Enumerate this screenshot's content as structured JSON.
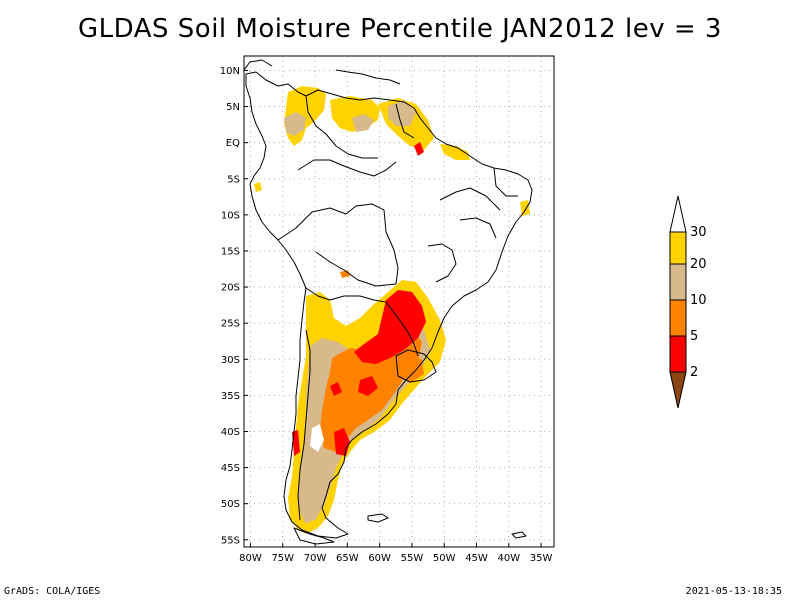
{
  "title": "GLDAS Soil Moisture Percentile JAN2012 lev = 3",
  "footer": {
    "left": "GrADS: COLA/IGES",
    "right": "2021-05-13-18:35"
  },
  "map": {
    "lat_labels": [
      "10N",
      "5N",
      "EQ",
      "5S",
      "10S",
      "15S",
      "20S",
      "25S",
      "30S",
      "35S",
      "40S",
      "45S",
      "50S",
      "55S"
    ],
    "lat_values": [
      10,
      5,
      0,
      -5,
      -10,
      -15,
      -20,
      -25,
      -30,
      -35,
      -40,
      -45,
      -50,
      -55
    ],
    "lon_labels": [
      "80W",
      "75W",
      "70W",
      "65W",
      "60W",
      "55W",
      "50W",
      "45W",
      "40W",
      "35W"
    ],
    "lon_values": [
      -80,
      -75,
      -70,
      -65,
      -60,
      -55,
      -50,
      -45,
      -40,
      -35
    ],
    "extent": {
      "lon": [
        -81,
        -33
      ],
      "lat": [
        -56,
        12
      ]
    }
  },
  "colorbar": {
    "levels": [
      "30",
      "20",
      "10",
      "5",
      "2"
    ],
    "colors": {
      "above_30": "#ffffff",
      "20_30": "#ffd200",
      "10_20": "#d7b98c",
      "5_10": "#ff8200",
      "2_5": "#ff0000",
      "below_2": "#8c4614"
    }
  }
}
